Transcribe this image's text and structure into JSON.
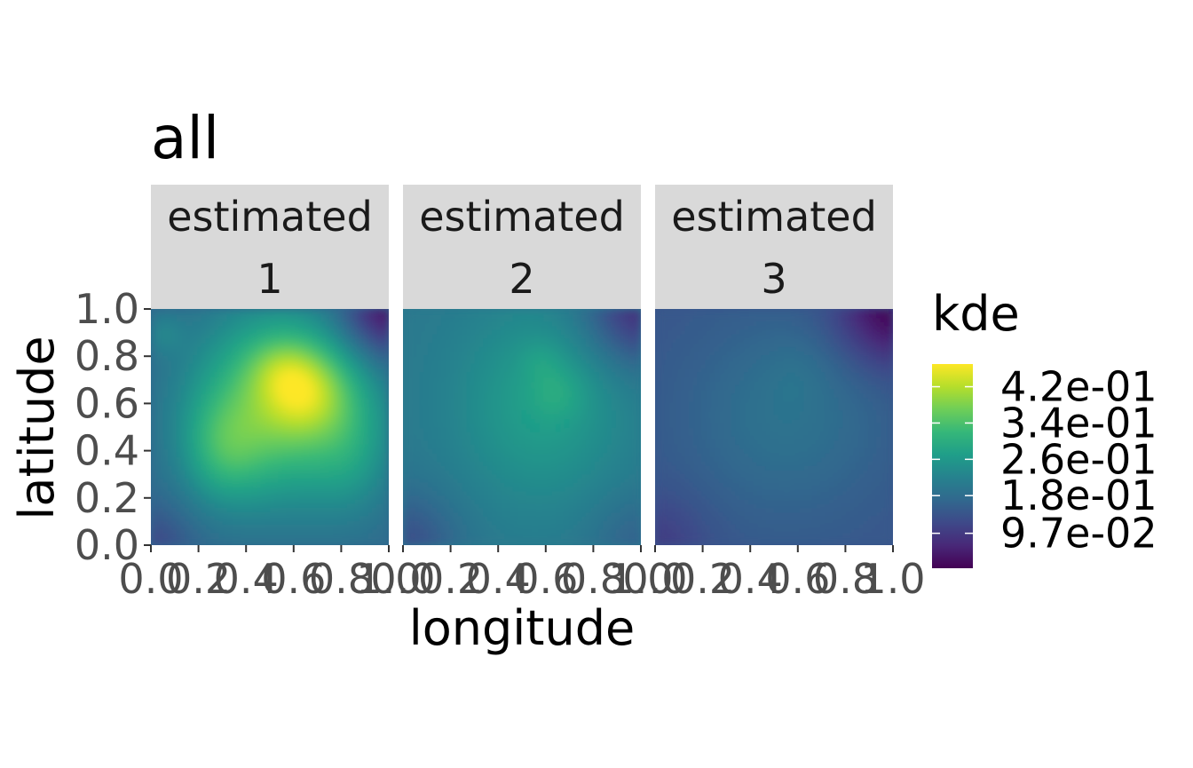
{
  "chart_data": {
    "type": "heatmap",
    "title": "all",
    "xlabel": "longitude",
    "ylabel": "latitude",
    "x_ticks": [
      "0.0",
      "0.2",
      "0.4",
      "0.6",
      "0.8",
      "1.0"
    ],
    "y_ticks": [
      "0.0",
      "0.2",
      "0.4",
      "0.6",
      "0.8",
      "1.0"
    ],
    "xlim": [
      0,
      1
    ],
    "ylim": [
      0,
      1
    ],
    "legend": {
      "title": "kde",
      "position": "right",
      "labels": [
        "4.2e-01",
        "3.4e-01",
        "2.6e-01",
        "1.8e-01",
        "9.7e-02"
      ],
      "values": [
        0.42,
        0.34,
        0.26,
        0.18,
        0.097
      ],
      "range": [
        0.02,
        0.47
      ],
      "colormap": [
        "#440154",
        "#482878",
        "#3e4989",
        "#31688e",
        "#26828e",
        "#1f9e89",
        "#35b779",
        "#6ece58",
        "#b5de2b",
        "#fde725"
      ]
    },
    "facets": [
      {
        "strip_line1": "estimated",
        "strip_line2": "1",
        "background": 0.17,
        "blobs": [
          {
            "x": 0.55,
            "y": 0.6,
            "sx": 0.26,
            "sy": 0.28,
            "a": 0.2
          },
          {
            "x": 0.65,
            "y": 0.65,
            "sx": 0.12,
            "sy": 0.12,
            "a": 0.1
          },
          {
            "x": 0.55,
            "y": 0.75,
            "sx": 0.1,
            "sy": 0.09,
            "a": 0.05
          },
          {
            "x": 0.3,
            "y": 0.4,
            "sx": 0.12,
            "sy": 0.16,
            "a": 0.08
          },
          {
            "x": 0.85,
            "y": 0.4,
            "sx": 0.12,
            "sy": 0.2,
            "a": 0.05
          },
          {
            "x": 0.05,
            "y": 0.9,
            "sx": 0.06,
            "sy": 0.06,
            "a": 0.04
          },
          {
            "x": 1.0,
            "y": 1.0,
            "sx": 0.14,
            "sy": 0.14,
            "a": -0.14
          },
          {
            "x": 0.0,
            "y": 0.0,
            "sx": 0.12,
            "sy": 0.12,
            "a": -0.05
          }
        ]
      },
      {
        "strip_line1": "estimated",
        "strip_line2": "2",
        "background": 0.2,
        "blobs": [
          {
            "x": 0.58,
            "y": 0.6,
            "sx": 0.25,
            "sy": 0.3,
            "a": 0.07
          },
          {
            "x": 0.65,
            "y": 0.65,
            "sx": 0.08,
            "sy": 0.08,
            "a": 0.03
          },
          {
            "x": 0.58,
            "y": 0.78,
            "sx": 0.06,
            "sy": 0.06,
            "a": 0.02
          },
          {
            "x": 1.0,
            "y": 1.0,
            "sx": 0.16,
            "sy": 0.16,
            "a": -0.12
          },
          {
            "x": 0.0,
            "y": 0.0,
            "sx": 0.16,
            "sy": 0.16,
            "a": -0.07
          },
          {
            "x": 1.0,
            "y": 0.0,
            "sx": 0.15,
            "sy": 0.15,
            "a": -0.04
          }
        ]
      },
      {
        "strip_line1": "estimated",
        "strip_line2": "3",
        "background": 0.14,
        "blobs": [
          {
            "x": 0.55,
            "y": 0.55,
            "sx": 0.3,
            "sy": 0.3,
            "a": 0.05
          },
          {
            "x": 0.6,
            "y": 0.75,
            "sx": 0.1,
            "sy": 0.1,
            "a": 0.01
          },
          {
            "x": 1.0,
            "y": 1.0,
            "sx": 0.16,
            "sy": 0.16,
            "a": -0.12
          },
          {
            "x": 0.0,
            "y": 0.0,
            "sx": 0.15,
            "sy": 0.15,
            "a": -0.04
          }
        ]
      }
    ]
  }
}
